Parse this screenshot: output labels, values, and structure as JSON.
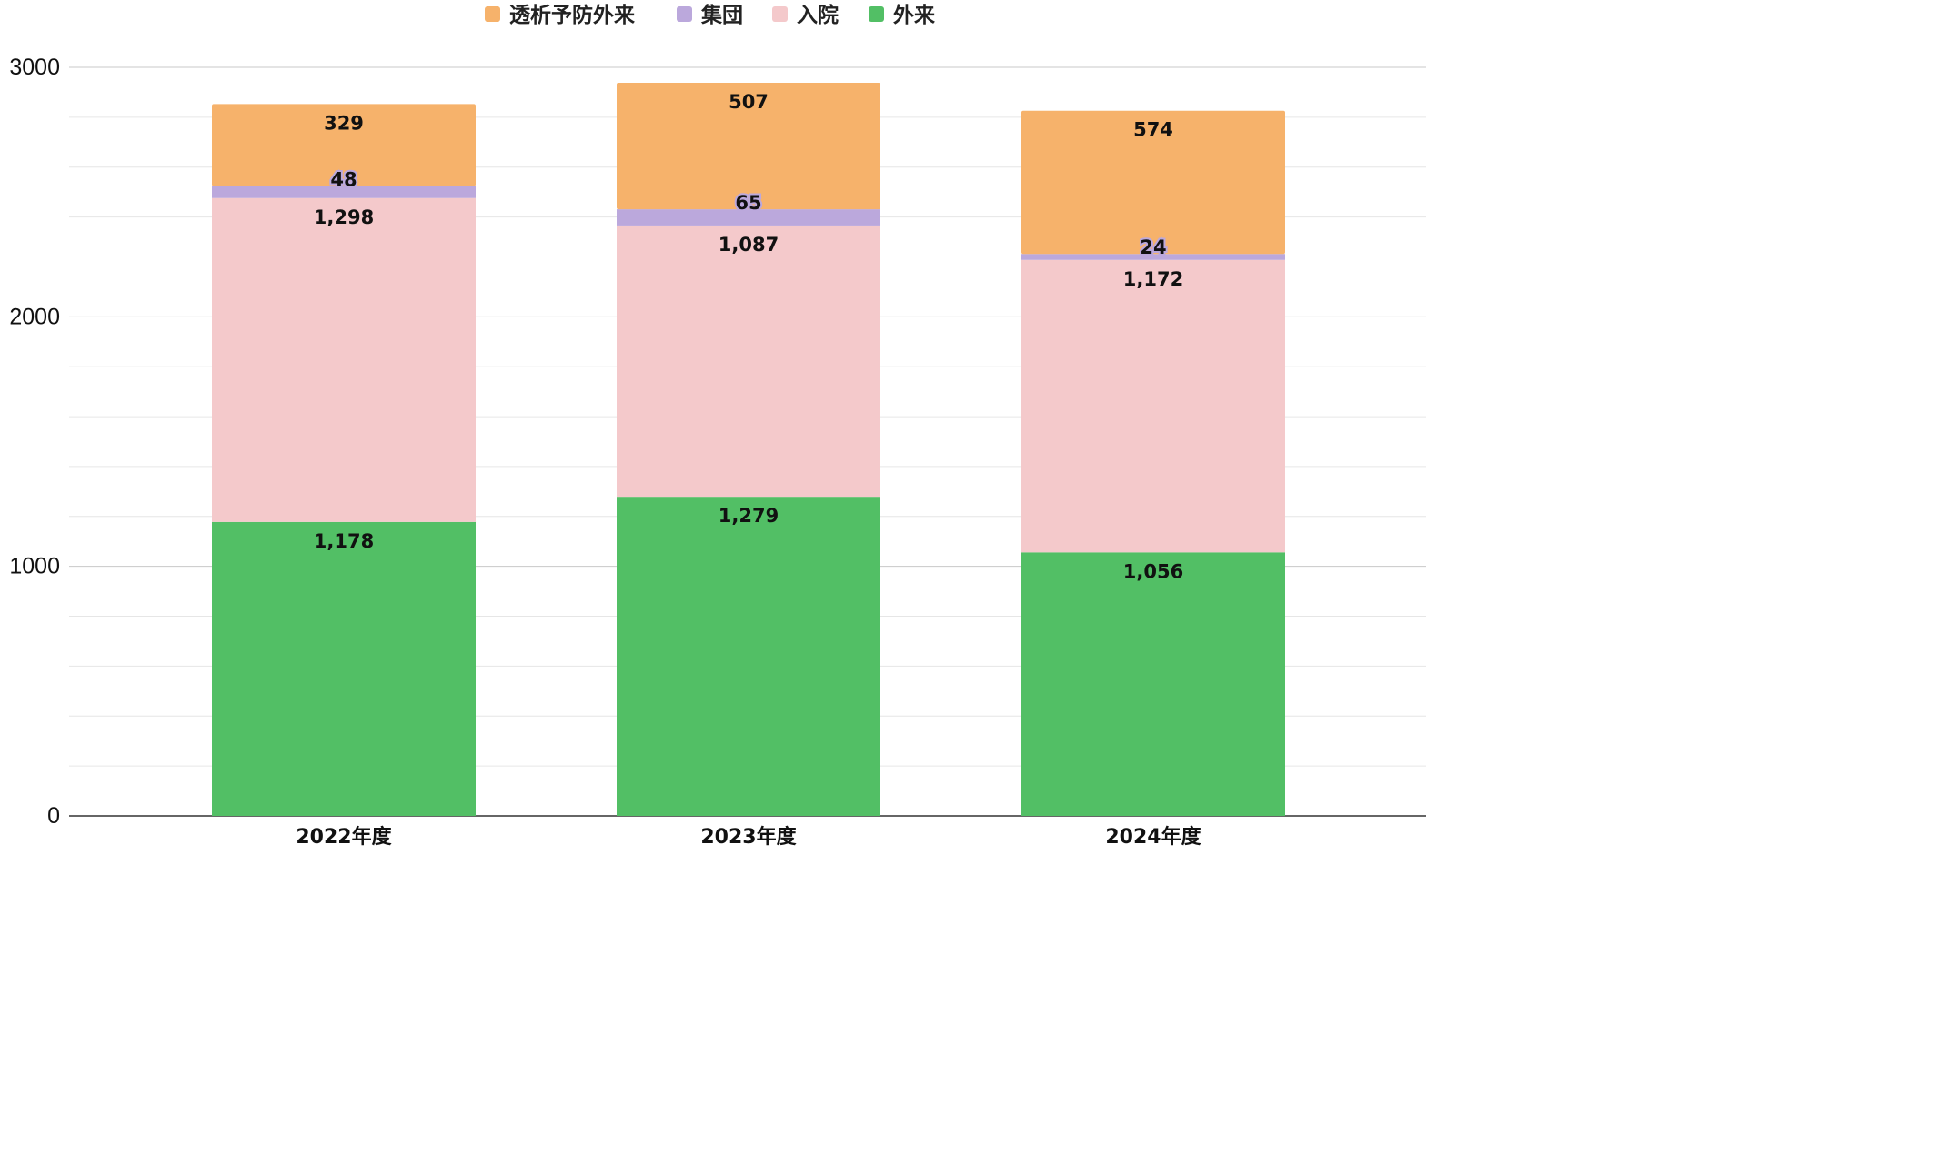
{
  "chart_data": {
    "type": "bar",
    "stacked": true,
    "title": "",
    "xlabel": "",
    "ylabel": "",
    "categories": [
      "2022年度",
      "2023年度",
      "2024年度"
    ],
    "series": [
      {
        "name": "外来",
        "color": "#52bf65",
        "values": [
          1178,
          1279,
          1056
        ],
        "labels": [
          "1,178",
          "1,279",
          "1,056"
        ]
      },
      {
        "name": "入院",
        "color": "#f4c9cb",
        "values": [
          1298,
          1087,
          1172
        ],
        "labels": [
          "1,298",
          "1,087",
          "1,172"
        ]
      },
      {
        "name": "集団",
        "color": "#bba8dc",
        "values": [
          48,
          65,
          24
        ],
        "labels": [
          "48",
          "65",
          "24"
        ]
      },
      {
        "name": "透析予防外来",
        "color": "#f6b26b",
        "values": [
          329,
          507,
          574
        ],
        "labels": [
          "329",
          "507",
          "574"
        ]
      }
    ],
    "legend_order": [
      "透析予防外来",
      "集団",
      "入院",
      "外来"
    ],
    "legend_position": "top",
    "ylim": [
      0,
      3000
    ],
    "yticks": [
      0,
      1000,
      2000,
      3000
    ],
    "grid": true
  }
}
